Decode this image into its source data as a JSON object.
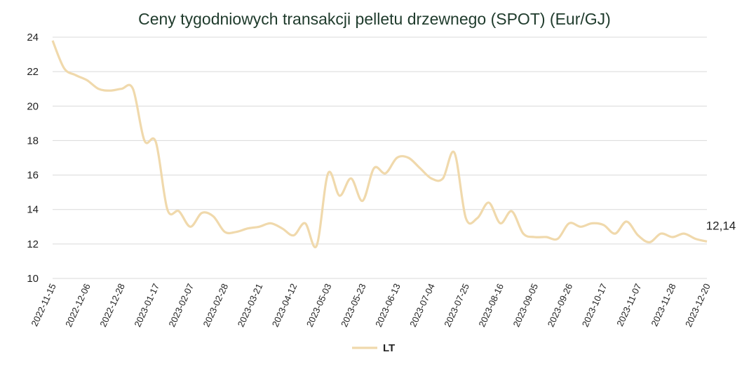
{
  "chart_data": {
    "type": "line",
    "title": "Ceny tygodniowych transakcji pelletu drzewnego (SPOT) (Eur/GJ)",
    "xlabel": "",
    "ylabel": "",
    "ylim": [
      10,
      24
    ],
    "yticks": [
      "10",
      "12",
      "14",
      "16",
      "18",
      "20",
      "22",
      "24"
    ],
    "grid": true,
    "legend_position": "bottom",
    "x_tick_labels": [
      "2022-11-15",
      "2022-12-06",
      "2022-12-28",
      "2023-01-17",
      "2023-02-07",
      "2023-02-28",
      "2023-03-21",
      "2023-04-12",
      "2023-05-03",
      "2023-05-23",
      "2023-06-13",
      "2023-07-04",
      "2023-07-25",
      "2023-08-16",
      "2023-09-05",
      "2023-09-26",
      "2023-10-17",
      "2023-11-07",
      "2023-11-28",
      "2023-12-20"
    ],
    "series": [
      {
        "name": "LT",
        "color": "#f0d9ac",
        "values": [
          23.8,
          22.2,
          21.8,
          21.5,
          21.0,
          20.9,
          21.0,
          21.0,
          18.0,
          17.9,
          14.0,
          13.9,
          13.0,
          13.8,
          13.6,
          12.7,
          12.7,
          12.9,
          13.0,
          13.2,
          12.9,
          12.5,
          13.2,
          11.9,
          16.1,
          14.8,
          15.8,
          14.5,
          16.4,
          16.1,
          17.0,
          17.0,
          16.4,
          15.8,
          15.8,
          17.3,
          13.5,
          13.5,
          14.4,
          13.2,
          13.9,
          12.6,
          12.4,
          12.4,
          12.3,
          13.2,
          13.0,
          13.2,
          13.1,
          12.6,
          13.3,
          12.5,
          12.1,
          12.6,
          12.4,
          12.6,
          12.3,
          12.14
        ]
      }
    ],
    "last_value_label": "12,14"
  }
}
